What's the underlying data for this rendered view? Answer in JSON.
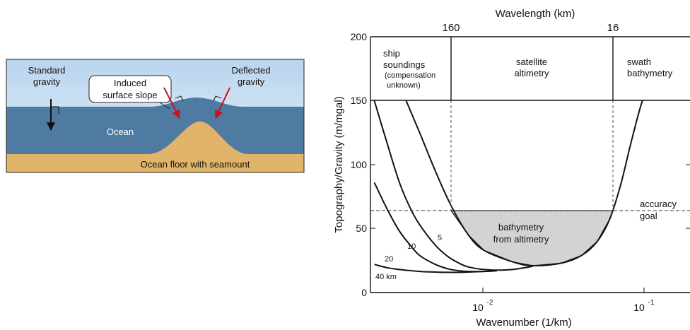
{
  "seamount": {
    "standard_gravity": [
      "Standard",
      "gravity"
    ],
    "induced_slope": [
      "Induced",
      "surface slope"
    ],
    "deflected_gravity": [
      "Deflected",
      "gravity"
    ],
    "ocean": "Ocean",
    "ocean_floor": "Ocean floor with seamount",
    "colors": {
      "ocean": "#4f7aa2",
      "sky_top": "#cfe1f2",
      "floor": "#e2b46a",
      "arrow_red": "#c8131a"
    }
  },
  "plot": {
    "top_label": "Wavelength (km)",
    "top_ticks": [
      "160",
      "16"
    ],
    "ylabel": "Topography/Gravity  (m/mgal)",
    "xlabel": "Wavenumber (1/km)",
    "y_ticks": [
      "200",
      "150",
      "100",
      "50",
      "0"
    ],
    "x_ticks": [
      {
        "base": "10",
        "exp": "-2"
      },
      {
        "base": "10",
        "exp": "-1"
      }
    ],
    "regions": {
      "ship": [
        "ship",
        "soundings",
        "(compensation",
        "unknown)"
      ],
      "satellite": [
        "satellite",
        "altimetry"
      ],
      "swath": [
        "swath",
        "bathymetry"
      ]
    },
    "accuracy_goal": [
      "accuracy",
      "goal"
    ],
    "bathymetry_from_altimetry": [
      "bathymetry",
      "from altimetry"
    ],
    "curve_labels": [
      "5",
      "10",
      "20",
      "40 km"
    ],
    "colors": {
      "shade": "#d3d3d3"
    }
  },
  "chart_data": {
    "type": "line",
    "x_scale": "log",
    "xlim": [
      0.0021,
      0.12
    ],
    "ylim": [
      0,
      200
    ],
    "title": "",
    "xlabel": "Wavenumber (1/km)",
    "ylabel": "Topography/Gravity  (m/mgal)",
    "top_axis": {
      "label": "Wavelength (km)",
      "ticks": [
        {
          "value": 160,
          "at_wavenumber": 0.00625
        },
        {
          "value": 16,
          "at_wavenumber": 0.0625
        }
      ]
    },
    "accuracy_goal_y": 64,
    "series": [
      {
        "name": "5",
        "x": [
          0.0033,
          0.004,
          0.005,
          0.00625,
          0.008,
          0.01,
          0.015,
          0.02,
          0.03,
          0.04,
          0.05,
          0.06,
          0.07,
          0.08,
          0.09,
          0.095
        ],
        "y": [
          150,
          125,
          95,
          68,
          45,
          33,
          24,
          21,
          23,
          29,
          40,
          58,
          85,
          115,
          140,
          150
        ]
      },
      {
        "name": "10",
        "x": [
          0.0021,
          0.0025,
          0.003,
          0.0035,
          0.004,
          0.005,
          0.006,
          0.007,
          0.008,
          0.01,
          0.012,
          0.015,
          0.02
        ],
        "y": [
          150,
          118,
          86,
          66,
          53,
          37,
          28,
          23,
          20,
          18,
          17.5,
          18,
          20.5
        ]
      },
      {
        "name": "20",
        "x": [
          0.0021,
          0.0025,
          0.003,
          0.0035,
          0.004,
          0.005,
          0.006,
          0.007,
          0.008,
          0.01,
          0.012
        ],
        "y": [
          86,
          66,
          48,
          37,
          29,
          22,
          18.5,
          17,
          16.5,
          16.5,
          17
        ]
      },
      {
        "name": "40 km",
        "x": [
          0.0021,
          0.0025,
          0.003,
          0.004,
          0.005,
          0.006,
          0.007,
          0.008,
          0.01
        ],
        "y": [
          22,
          19.5,
          18,
          16.5,
          16,
          15.8,
          15.8,
          16,
          16.5
        ]
      }
    ]
  }
}
